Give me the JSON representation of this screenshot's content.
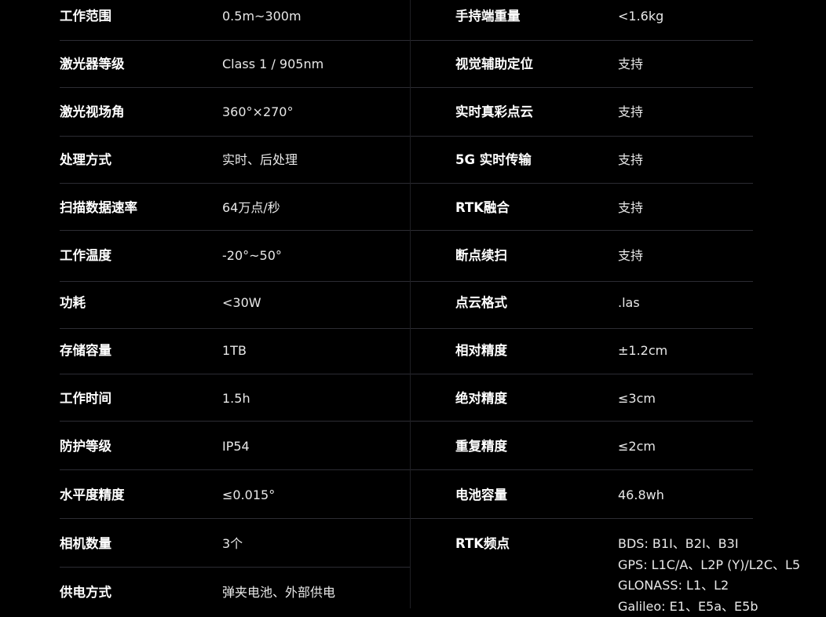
{
  "left_specs": [
    {
      "label": "工作范围",
      "value": "0.5m~300m"
    },
    {
      "label": "激光器等级",
      "value": "Class 1 / 905nm"
    },
    {
      "label": "激光视场角",
      "value": "360°×270°"
    },
    {
      "label": "处理方式",
      "value": "实时、后处理"
    },
    {
      "label": "扫描数据速率",
      "value": "64万点/秒"
    },
    {
      "label": "工作温度",
      "value": "-20°~50°"
    },
    {
      "label": "功耗",
      "value": "<30W"
    },
    {
      "label": "存储容量",
      "value": "1TB"
    },
    {
      "label": "工作时间",
      "value": "1.5h"
    },
    {
      "label": "防护等级",
      "value": "IP54"
    },
    {
      "label": "水平度精度",
      "value": "≤0.015°"
    },
    {
      "label": "相机数量",
      "value": "3个"
    },
    {
      "label": "供电方式",
      "value": "弹夹电池、外部供电"
    }
  ],
  "right_specs": [
    {
      "label": "手持端重量",
      "value": "<1.6kg"
    },
    {
      "label": "视觉辅助定位",
      "value": "支持"
    },
    {
      "label": "实时真彩点云",
      "value": "支持"
    },
    {
      "label": "5G 实时传输",
      "value": "支持"
    },
    {
      "label": "RTK融合",
      "value": "支持"
    },
    {
      "label": "断点续扫",
      "value": "支持"
    },
    {
      "label": "点云格式",
      "value": ".las"
    },
    {
      "label": "相对精度",
      "value": "±1.2cm"
    },
    {
      "label": "绝对精度",
      "value": "≤3cm"
    },
    {
      "label": "重复精度",
      "value": "≤2cm"
    },
    {
      "label": "电池容量",
      "value": "46.8wh"
    }
  ],
  "rtk_bands": {
    "label": "RTK频点",
    "lines": [
      "BDS: B1I、B2I、B3I",
      "GPS: L1C/A、L2P (Y)/L2C、L5",
      "GLONASS: L1、L2",
      "Galileo: E1、E5a、E5b"
    ]
  }
}
